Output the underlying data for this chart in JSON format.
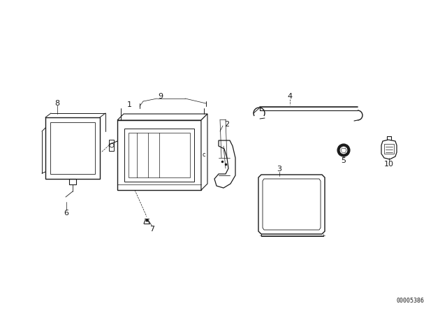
{
  "bg_color": "#ffffff",
  "line_color": "#1a1a1a",
  "part_number": "00005386",
  "figsize": [
    6.4,
    4.48
  ],
  "dpi": 100
}
